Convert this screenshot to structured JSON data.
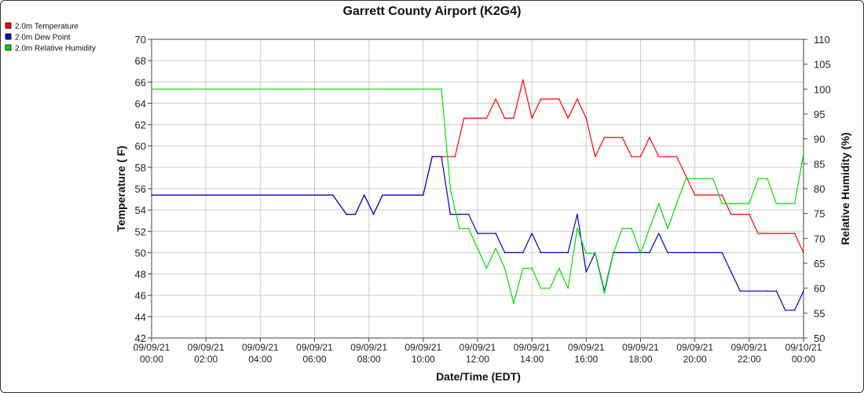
{
  "chart_data": {
    "type": "line",
    "title": "Garrett County Airport (K2G4)",
    "xlabel": "Date/Time (EDT)",
    "ylabel": "Temperature ( F)",
    "y2label": "Relative Humidity (%)",
    "ylim": [
      42,
      70
    ],
    "y2lim": [
      50,
      110
    ],
    "xlim": [
      0,
      24
    ],
    "y_ticks": [
      "42",
      "44",
      "46",
      "48",
      "50",
      "52",
      "54",
      "56",
      "58",
      "60",
      "62",
      "64",
      "66",
      "68",
      "70"
    ],
    "y2_ticks": [
      "50",
      "55",
      "60",
      "65",
      "70",
      "75",
      "80",
      "85",
      "90",
      "95",
      "100",
      "105",
      "110"
    ],
    "x_ticks": [
      {
        "date": "09/09/21",
        "time": "00:00"
      },
      {
        "date": "09/09/21",
        "time": "02:00"
      },
      {
        "date": "09/09/21",
        "time": "04:00"
      },
      {
        "date": "09/09/21",
        "time": "06:00"
      },
      {
        "date": "09/09/21",
        "time": "08:00"
      },
      {
        "date": "09/09/21",
        "time": "10:00"
      },
      {
        "date": "09/09/21",
        "time": "12:00"
      },
      {
        "date": "09/09/21",
        "time": "14:00"
      },
      {
        "date": "09/09/21",
        "time": "16:00"
      },
      {
        "date": "09/09/21",
        "time": "18:00"
      },
      {
        "date": "09/09/21",
        "time": "20:00"
      },
      {
        "date": "09/09/21",
        "time": "22:00"
      },
      {
        "date": "09/10/21",
        "time": "00:00"
      }
    ],
    "grid": true,
    "legend_position": "top-left",
    "series": [
      {
        "name": "2.0m Temperature",
        "color": "#ff0000",
        "axis": "left",
        "x": [
          0,
          6.67,
          7.17,
          7.5,
          7.83,
          8.17,
          8.5,
          10,
          10.33,
          10.67,
          11.17,
          11.5,
          12,
          12.33,
          12.67,
          13,
          13.33,
          13.67,
          14,
          14.33,
          14.67,
          15,
          15.33,
          15.67,
          16,
          16.33,
          16.67,
          17,
          17.33,
          17.67,
          18,
          18.33,
          18.67,
          19,
          19.33,
          19.67,
          20,
          20.33,
          20.67,
          21,
          21.33,
          21.67,
          22,
          22.33,
          22.67,
          23,
          23.33,
          23.67,
          24
        ],
        "values": [
          55.4,
          55.4,
          53.6,
          53.6,
          55.4,
          53.6,
          55.4,
          55.4,
          59,
          59,
          59,
          62.6,
          62.6,
          62.6,
          64.4,
          62.6,
          62.6,
          66.2,
          62.6,
          64.4,
          64.4,
          64.4,
          62.6,
          64.4,
          62.6,
          59,
          60.8,
          60.8,
          60.8,
          59,
          59,
          60.8,
          59,
          59,
          59,
          57.2,
          55.4,
          55.4,
          55.4,
          55.4,
          53.6,
          53.6,
          53.6,
          51.8,
          51.8,
          51.8,
          51.8,
          51.8,
          50
        ]
      },
      {
        "name": "2.0m Dew Point",
        "color": "#0000cc",
        "axis": "left",
        "x": [
          0,
          6.67,
          7.17,
          7.5,
          7.83,
          8.17,
          8.5,
          10,
          10.33,
          10.67,
          11,
          11.33,
          11.67,
          12,
          12.33,
          12.67,
          13,
          13.33,
          13.67,
          14,
          14.33,
          14.67,
          15,
          15.33,
          15.67,
          16,
          16.33,
          16.67,
          17,
          17.33,
          17.67,
          18,
          18.33,
          18.67,
          19,
          19.33,
          19.67,
          20,
          20.33,
          20.67,
          21,
          21.33,
          21.67,
          22,
          22.33,
          22.67,
          23,
          23.33,
          23.67,
          24
        ],
        "values": [
          55.4,
          55.4,
          53.6,
          53.6,
          55.4,
          53.6,
          55.4,
          55.4,
          59,
          59,
          53.6,
          53.6,
          53.6,
          51.8,
          51.8,
          51.8,
          50,
          50,
          50,
          51.8,
          50,
          50,
          50,
          50,
          53.6,
          48.2,
          50,
          46.4,
          50,
          50,
          50,
          50,
          50,
          51.8,
          50,
          50,
          50,
          50,
          50,
          50,
          50,
          48.2,
          46.4,
          46.4,
          46.4,
          46.4,
          46.4,
          44.6,
          44.6,
          46.4
        ]
      },
      {
        "name": "2.0m Relative Humidity",
        "color": "#00dd00",
        "axis": "right",
        "x": [
          0,
          10.67,
          11,
          11.33,
          11.67,
          12,
          12.33,
          12.67,
          13,
          13.33,
          13.67,
          14,
          14.33,
          14.67,
          15,
          15.33,
          15.67,
          16,
          16.33,
          16.67,
          17,
          17.33,
          17.67,
          18,
          18.33,
          18.67,
          19,
          19.33,
          19.67,
          20,
          20.33,
          20.67,
          21,
          21.33,
          21.67,
          22,
          22.33,
          22.67,
          23,
          23.33,
          23.67,
          24
        ],
        "values": [
          100,
          100,
          80,
          72,
          72,
          68,
          64,
          68,
          64,
          57,
          64,
          64,
          60,
          60,
          64,
          60,
          72,
          67,
          67,
          59,
          67,
          72,
          72,
          67,
          72,
          77,
          72,
          77,
          82,
          82,
          82,
          82,
          77,
          77,
          77,
          77,
          82,
          82,
          77,
          77,
          77,
          87
        ]
      }
    ]
  }
}
